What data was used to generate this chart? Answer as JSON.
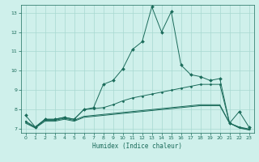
{
  "xlabel": "Humidex (Indice chaleur)",
  "bg_color": "#cff0eb",
  "line_color": "#1a6b5a",
  "grid_color": "#a8d8d0",
  "xlim": [
    -0.5,
    23.5
  ],
  "ylim": [
    6.8,
    13.4
  ],
  "xticks": [
    0,
    1,
    2,
    3,
    4,
    5,
    6,
    7,
    8,
    9,
    10,
    11,
    12,
    13,
    14,
    15,
    16,
    17,
    18,
    19,
    20,
    21,
    22,
    23
  ],
  "yticks": [
    7,
    8,
    9,
    10,
    11,
    12,
    13
  ],
  "line1_x": [
    0,
    1,
    2,
    3,
    4,
    5,
    6,
    7,
    8,
    9,
    10,
    11,
    12,
    13,
    14,
    15,
    16,
    17,
    18,
    19,
    20,
    21,
    22,
    23
  ],
  "line1_y": [
    7.7,
    7.1,
    7.5,
    7.5,
    7.6,
    7.5,
    8.0,
    8.1,
    9.3,
    9.5,
    10.1,
    11.1,
    11.5,
    13.3,
    12.0,
    13.05,
    10.3,
    9.8,
    9.7,
    9.5,
    9.6,
    7.3,
    7.9,
    7.1
  ],
  "line2_x": [
    0,
    1,
    2,
    3,
    4,
    5,
    6,
    7,
    8,
    9,
    10,
    11,
    12,
    13,
    14,
    15,
    16,
    17,
    18,
    19,
    20,
    21,
    22,
    23
  ],
  "line2_y": [
    7.4,
    7.1,
    7.5,
    7.5,
    7.6,
    7.5,
    8.0,
    8.05,
    8.1,
    8.25,
    8.45,
    8.6,
    8.7,
    8.8,
    8.9,
    9.0,
    9.1,
    9.2,
    9.3,
    9.3,
    9.3,
    7.3,
    7.1,
    7.0
  ],
  "line3_x": [
    0,
    1,
    2,
    3,
    4,
    5,
    6,
    7,
    8,
    9,
    10,
    11,
    12,
    13,
    14,
    15,
    16,
    17,
    18,
    19,
    20,
    21,
    22,
    23
  ],
  "line3_y": [
    7.3,
    7.05,
    7.4,
    7.4,
    7.5,
    7.4,
    7.6,
    7.65,
    7.7,
    7.75,
    7.8,
    7.85,
    7.9,
    7.95,
    8.0,
    8.05,
    8.1,
    8.15,
    8.2,
    8.2,
    8.2,
    7.3,
    7.05,
    6.95
  ],
  "line4_x": [
    0,
    1,
    2,
    3,
    4,
    5,
    6,
    7,
    8,
    9,
    10,
    11,
    12,
    13,
    14,
    15,
    16,
    17,
    18,
    19,
    20,
    21,
    22,
    23
  ],
  "line4_y": [
    7.35,
    7.07,
    7.45,
    7.45,
    7.55,
    7.45,
    7.65,
    7.7,
    7.75,
    7.8,
    7.85,
    7.9,
    7.95,
    8.0,
    8.05,
    8.1,
    8.15,
    8.2,
    8.25,
    8.25,
    8.25,
    7.3,
    7.07,
    6.97
  ]
}
